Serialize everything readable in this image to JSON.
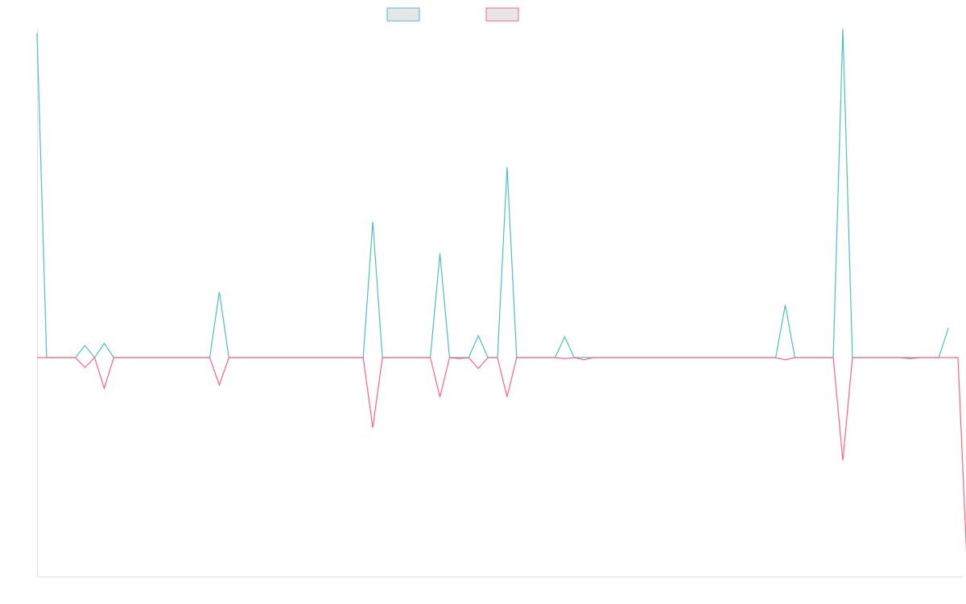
{
  "chart_data": {
    "type": "line",
    "title": "",
    "xlabel": "",
    "ylabel": "",
    "grid": false,
    "legend_position": "top-center",
    "ylim": [
      -1.0,
      1.5
    ],
    "x_count": 97,
    "series": [
      {
        "color": "#4bc0c0",
        "fill": "#e6e6e6",
        "values": [
          1.48,
          0,
          0,
          0,
          0,
          0.055,
          0,
          0.065,
          0,
          0,
          0,
          0,
          0,
          0,
          0,
          0,
          0,
          0,
          0,
          0.3,
          0,
          0,
          0,
          0,
          0,
          0,
          0,
          0,
          0,
          0,
          0,
          0,
          0,
          0,
          0,
          0.62,
          0,
          0,
          0,
          0,
          0,
          0,
          0.475,
          0,
          0,
          0,
          0.1,
          0,
          0,
          0.87,
          0,
          0,
          0,
          0,
          0,
          0.095,
          0,
          0,
          0,
          0,
          0,
          0,
          0,
          0,
          0,
          0,
          0,
          0,
          0,
          0,
          0,
          0,
          0,
          0,
          0,
          0,
          0,
          0,
          0.24,
          0,
          0,
          0,
          0,
          0,
          1.5,
          0,
          0,
          0,
          0,
          0,
          0,
          0,
          0,
          0,
          0,
          0.135
        ]
      },
      {
        "color": "#ff6384",
        "fill": "#e6e6e6",
        "values": [
          0,
          0,
          0,
          0,
          0,
          -0.045,
          0,
          -0.14,
          0,
          0,
          0,
          0,
          0,
          0,
          0,
          0,
          0,
          0,
          0,
          -0.125,
          0,
          0,
          0,
          0,
          0,
          0,
          0,
          0,
          0,
          0,
          0,
          0,
          0,
          0,
          0,
          -0.32,
          0,
          0,
          0,
          0,
          0,
          0,
          -0.18,
          0,
          -0.005,
          0,
          -0.05,
          0,
          0,
          -0.18,
          0,
          0,
          0,
          0,
          0,
          -0.005,
          0,
          -0.01,
          0,
          0,
          0,
          0,
          0,
          0,
          0,
          0,
          0,
          0,
          0,
          0,
          0,
          0,
          0,
          0,
          0,
          0,
          0,
          0,
          -0.01,
          0,
          0,
          0,
          0,
          0,
          -0.47,
          0,
          0,
          0,
          0,
          0,
          0,
          -0.005,
          0,
          0,
          0,
          0,
          0,
          -1.0
        ]
      }
    ]
  }
}
